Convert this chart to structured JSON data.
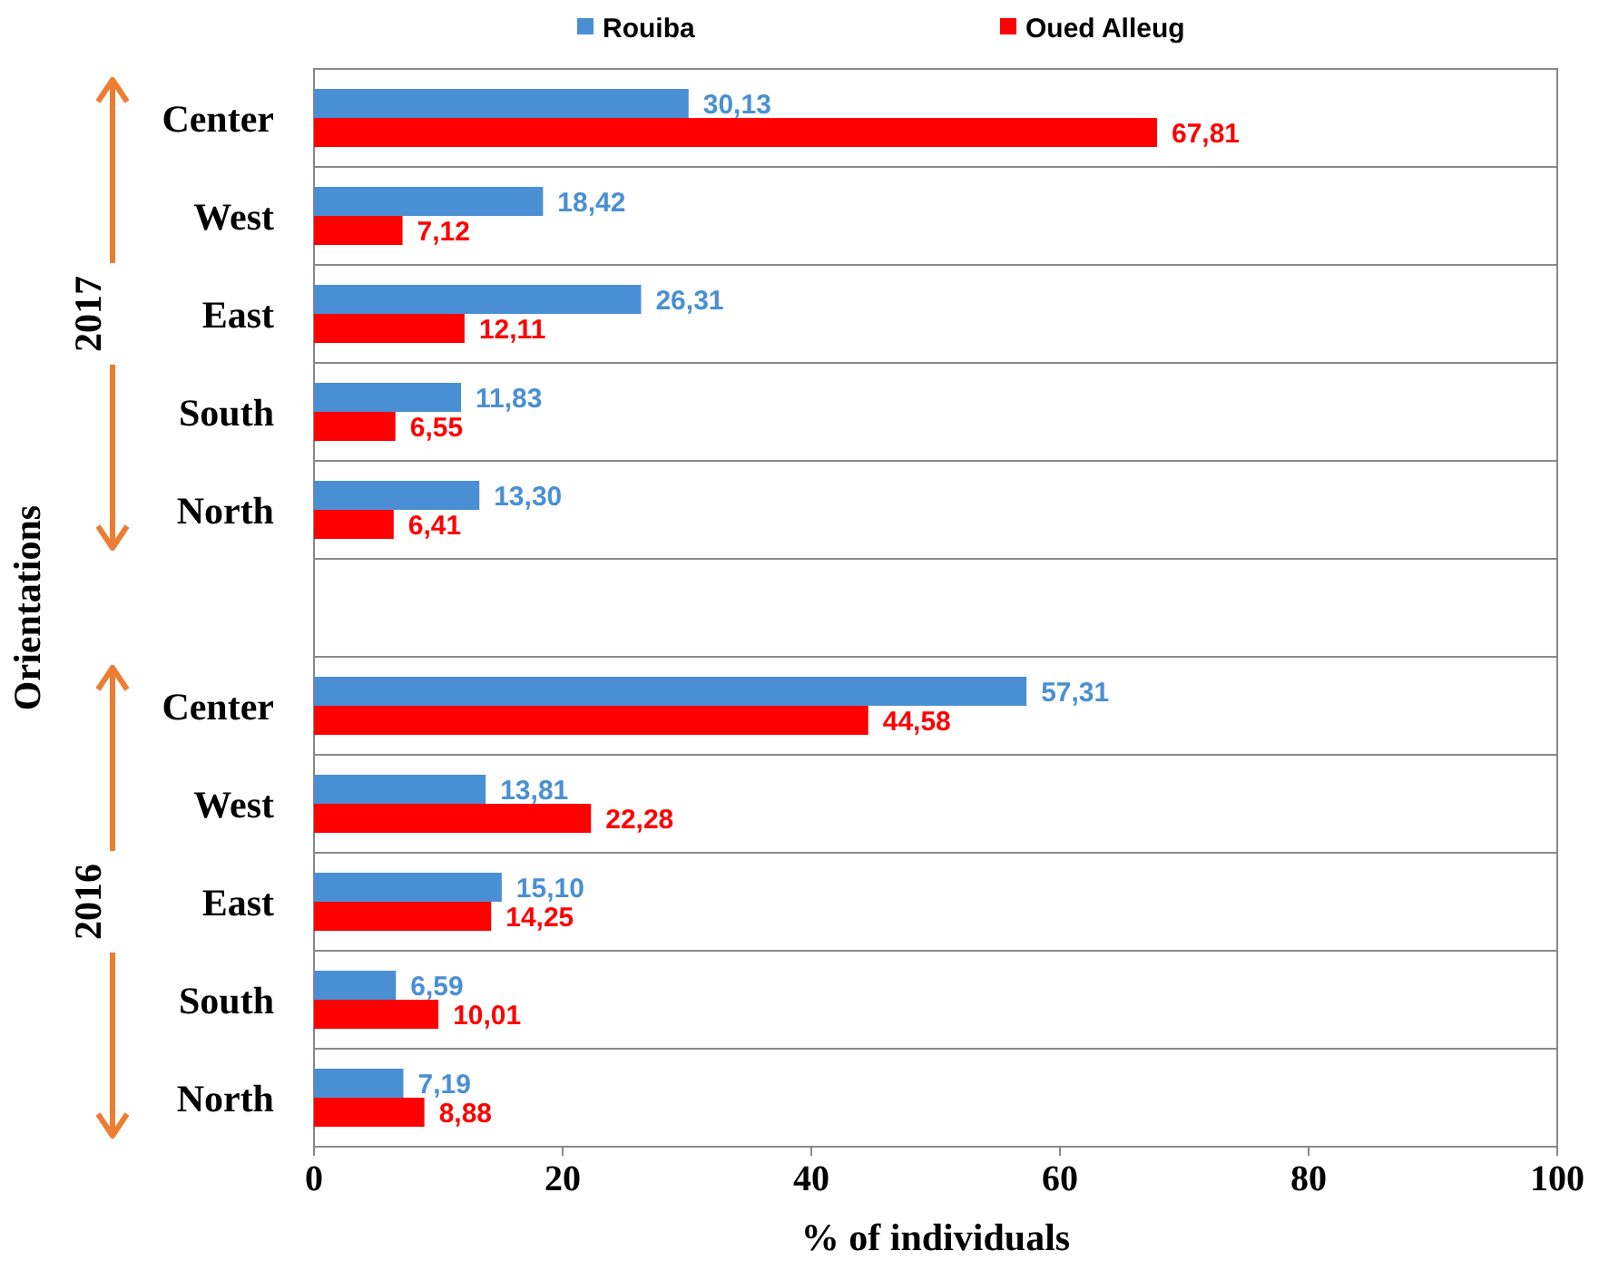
{
  "chart_data": {
    "type": "bar",
    "orientation": "horizontal",
    "xlabel": "% of individuals",
    "ylabel": "Orientations",
    "categories": [
      "Center",
      "West",
      "East",
      "South",
      "North",
      null,
      "Center",
      "West",
      "East",
      "South",
      "North"
    ],
    "series": [
      {
        "name": "Rouiba",
        "color": "#4a8fd4",
        "values": [
          30.13,
          18.42,
          26.31,
          11.83,
          13.3,
          null,
          57.31,
          13.81,
          15.1,
          6.59,
          7.19
        ],
        "value_labels": [
          "30,13",
          "18,42",
          "26,31",
          "11,83",
          "13,30",
          null,
          "57,31",
          "13,81",
          "15,10",
          "6,59",
          "7,19"
        ]
      },
      {
        "name": "Oued Alleug",
        "color": "#ff0000",
        "values": [
          67.81,
          7.12,
          12.11,
          6.55,
          6.41,
          null,
          44.58,
          22.28,
          14.25,
          10.01,
          8.88
        ],
        "value_labels": [
          "67,81",
          "7,12",
          "12,11",
          "6,55",
          "6,41",
          null,
          "44,58",
          "22,28",
          "14,25",
          "10,01",
          "8,88"
        ]
      }
    ],
    "annotations": [
      "2017",
      "2016"
    ],
    "xlim": [
      0,
      100
    ],
    "xticks": [
      0,
      20,
      40,
      60,
      80,
      100
    ],
    "grid": "y",
    "legend": "top"
  }
}
